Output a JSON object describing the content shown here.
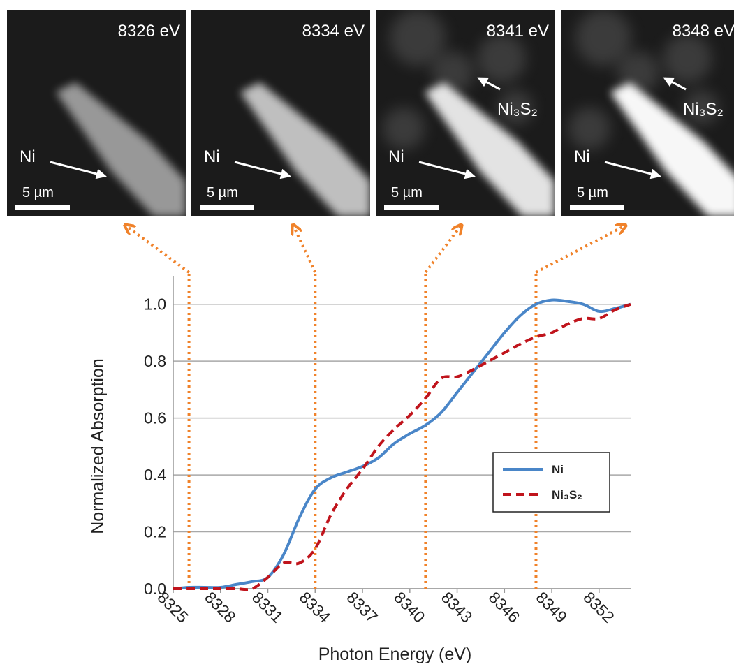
{
  "images": [
    {
      "title": "8326 eV",
      "labels": [
        "Ni"
      ],
      "scale_bar": "5 µm"
    },
    {
      "title": "8334 eV",
      "labels": [
        "Ni"
      ],
      "scale_bar": "5 µm"
    },
    {
      "title": "8341 eV",
      "labels": [
        "Ni",
        "Ni₃S₂"
      ],
      "scale_bar": "5 µm"
    },
    {
      "title": "8348 eV",
      "labels": [
        "Ni",
        "Ni₃S₂"
      ],
      "scale_bar": "5 µm"
    }
  ],
  "chart_data": {
    "type": "line",
    "xlabel": "Photon Energy (eV)",
    "ylabel": "Normalized Absorption",
    "x": [
      8325,
      8326,
      8327,
      8328,
      8329,
      8330,
      8331,
      8332,
      8333,
      8334,
      8335,
      8336,
      8337,
      8338,
      8339,
      8340,
      8341,
      8342,
      8343,
      8344,
      8345,
      8346,
      8347,
      8348,
      8349,
      8350,
      8351,
      8352,
      8353,
      8354
    ],
    "series": [
      {
        "name": "Ni",
        "color": "#4a86c8",
        "dashed": false,
        "values": [
          0,
          0.005,
          0.005,
          0.005,
          0.015,
          0.025,
          0.04,
          0.12,
          0.25,
          0.35,
          0.39,
          0.41,
          0.43,
          0.46,
          0.51,
          0.545,
          0.575,
          0.62,
          0.69,
          0.76,
          0.83,
          0.9,
          0.96,
          1.0,
          1.015,
          1.01,
          1.0,
          0.975,
          0.985,
          1.0
        ]
      },
      {
        "name": "Ni₃S₂",
        "color": "#c0141c",
        "dashed": true,
        "values": [
          0,
          0,
          0,
          0,
          0,
          0,
          0.04,
          0.09,
          0.09,
          0.14,
          0.26,
          0.35,
          0.42,
          0.5,
          0.56,
          0.61,
          0.67,
          0.74,
          0.745,
          0.77,
          0.8,
          0.83,
          0.86,
          0.885,
          0.9,
          0.93,
          0.95,
          0.95,
          0.98,
          1.0
        ]
      }
    ],
    "markers": [
      8326,
      8334,
      8341,
      8348
    ],
    "marker_color": "#f0822a",
    "xlim": [
      8325,
      8354
    ],
    "ylim": [
      0,
      1.1
    ],
    "xticks": [
      8325,
      8328,
      8331,
      8334,
      8337,
      8340,
      8343,
      8346,
      8349,
      8352
    ],
    "yticks": [
      {
        "value": 0,
        "label": "0.0"
      },
      0.2,
      0.4,
      0.6,
      0.8,
      {
        "value": 1,
        "label": "1.0"
      }
    ],
    "grid": true
  }
}
